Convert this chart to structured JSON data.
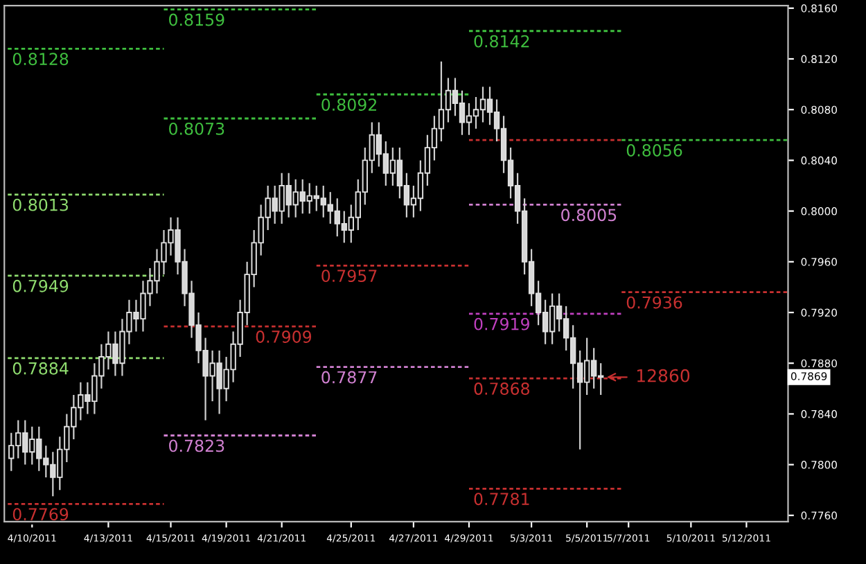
{
  "chart_data": {
    "type": "candlestick",
    "categories": [
      null,
      null,
      null,
      "4/10/2011",
      null,
      null,
      null,
      null,
      null,
      null,
      null,
      null,
      null,
      null,
      "4/13/2011",
      null,
      null,
      null,
      null,
      null,
      null,
      null,
      null,
      "4/15/2011",
      null,
      null,
      null,
      null,
      null,
      null,
      null,
      "4/19/2011",
      null,
      null,
      null,
      null,
      null,
      null,
      null,
      "4/21/2011",
      null,
      null,
      null,
      null,
      null,
      null,
      null,
      null,
      null,
      "4/25/2011",
      null,
      null,
      null,
      null,
      null,
      null,
      null,
      null,
      "4/27/2011",
      null,
      null,
      null,
      null,
      null,
      null,
      null,
      "4/29/2011",
      null,
      null,
      null,
      null,
      null,
      null,
      null,
      null,
      "5/3/2011",
      null,
      null,
      null,
      null,
      null,
      null,
      null,
      "5/5/2011",
      null,
      null,
      null,
      null,
      null,
      "5/7/2011",
      null,
      null,
      null,
      null,
      null,
      null,
      null,
      null,
      "5/10/2011",
      null,
      null,
      null,
      null,
      null,
      null,
      null,
      "5/12/2011",
      null,
      null,
      null,
      null,
      null
    ],
    "ohlc": [
      [
        0.7805,
        0.7825,
        0.7795,
        0.7815
      ],
      [
        0.7815,
        0.7835,
        0.7805,
        0.7825
      ],
      [
        0.7825,
        0.7835,
        0.78,
        0.781
      ],
      [
        0.781,
        0.783,
        0.78,
        0.782
      ],
      [
        0.782,
        0.783,
        0.7795,
        0.7805
      ],
      [
        0.7805,
        0.7815,
        0.779,
        0.78
      ],
      [
        0.78,
        0.781,
        0.7775,
        0.779
      ],
      [
        0.779,
        0.7822,
        0.778,
        0.7812
      ],
      [
        0.7812,
        0.784,
        0.7802,
        0.783
      ],
      [
        0.783,
        0.7855,
        0.782,
        0.7845
      ],
      [
        0.7845,
        0.7865,
        0.7835,
        0.7855
      ],
      [
        0.7855,
        0.7865,
        0.784,
        0.785
      ],
      [
        0.785,
        0.788,
        0.784,
        0.787
      ],
      [
        0.787,
        0.7895,
        0.786,
        0.7885
      ],
      [
        0.7885,
        0.7905,
        0.7875,
        0.7895
      ],
      [
        0.7895,
        0.7905,
        0.787,
        0.788
      ],
      [
        0.788,
        0.7915,
        0.787,
        0.7905
      ],
      [
        0.7905,
        0.793,
        0.7895,
        0.792
      ],
      [
        0.792,
        0.793,
        0.7905,
        0.7915
      ],
      [
        0.7915,
        0.7945,
        0.7905,
        0.7935
      ],
      [
        0.7935,
        0.7955,
        0.7925,
        0.7945
      ],
      [
        0.7945,
        0.797,
        0.7935,
        0.796
      ],
      [
        0.796,
        0.7985,
        0.795,
        0.7975
      ],
      [
        0.7975,
        0.7995,
        0.7965,
        0.7985
      ],
      [
        0.7985,
        0.7995,
        0.795,
        0.796
      ],
      [
        0.796,
        0.797,
        0.7925,
        0.7935
      ],
      [
        0.7935,
        0.7945,
        0.79,
        0.791
      ],
      [
        0.791,
        0.792,
        0.788,
        0.789
      ],
      [
        0.789,
        0.79,
        0.7835,
        0.787
      ],
      [
        0.787,
        0.789,
        0.785,
        0.788
      ],
      [
        0.788,
        0.789,
        0.784,
        0.786
      ],
      [
        0.786,
        0.7885,
        0.785,
        0.7875
      ],
      [
        0.7875,
        0.7905,
        0.7865,
        0.7895
      ],
      [
        0.7895,
        0.793,
        0.7885,
        0.792
      ],
      [
        0.792,
        0.796,
        0.791,
        0.795
      ],
      [
        0.795,
        0.7985,
        0.794,
        0.7975
      ],
      [
        0.7975,
        0.8005,
        0.7965,
        0.7995
      ],
      [
        0.7995,
        0.802,
        0.7985,
        0.801
      ],
      [
        0.801,
        0.802,
        0.799,
        0.8
      ],
      [
        0.8,
        0.803,
        0.799,
        0.802
      ],
      [
        0.802,
        0.803,
        0.7995,
        0.8005
      ],
      [
        0.8005,
        0.8025,
        0.7995,
        0.8015
      ],
      [
        0.8015,
        0.8025,
        0.7998,
        0.8008
      ],
      [
        0.8008,
        0.8022,
        0.7998,
        0.8012
      ],
      [
        0.8012,
        0.802,
        0.8,
        0.801
      ],
      [
        0.801,
        0.802,
        0.7995,
        0.8005
      ],
      [
        0.8005,
        0.8015,
        0.799,
        0.8
      ],
      [
        0.8,
        0.801,
        0.798,
        0.799
      ],
      [
        0.799,
        0.8,
        0.7975,
        0.7985
      ],
      [
        0.7985,
        0.8005,
        0.7975,
        0.7995
      ],
      [
        0.7995,
        0.8025,
        0.7985,
        0.8015
      ],
      [
        0.8015,
        0.805,
        0.8005,
        0.804
      ],
      [
        0.804,
        0.807,
        0.803,
        0.806
      ],
      [
        0.806,
        0.807,
        0.8035,
        0.8045
      ],
      [
        0.8045,
        0.8055,
        0.802,
        0.803
      ],
      [
        0.803,
        0.805,
        0.802,
        0.804
      ],
      [
        0.804,
        0.805,
        0.801,
        0.802
      ],
      [
        0.802,
        0.803,
        0.7995,
        0.8005
      ],
      [
        0.8005,
        0.802,
        0.7995,
        0.801
      ],
      [
        0.801,
        0.804,
        0.8,
        0.803
      ],
      [
        0.803,
        0.806,
        0.802,
        0.805
      ],
      [
        0.805,
        0.8075,
        0.804,
        0.8065
      ],
      [
        0.8065,
        0.8118,
        0.8055,
        0.808
      ],
      [
        0.808,
        0.8105,
        0.807,
        0.8095
      ],
      [
        0.8095,
        0.8105,
        0.8075,
        0.8085
      ],
      [
        0.8085,
        0.8095,
        0.806,
        0.807
      ],
      [
        0.807,
        0.8085,
        0.806,
        0.8075
      ],
      [
        0.8075,
        0.809,
        0.8065,
        0.808
      ],
      [
        0.808,
        0.8098,
        0.807,
        0.8088
      ],
      [
        0.8088,
        0.8098,
        0.8068,
        0.8078
      ],
      [
        0.8078,
        0.8088,
        0.8055,
        0.8065
      ],
      [
        0.8065,
        0.8075,
        0.803,
        0.804
      ],
      [
        0.804,
        0.805,
        0.801,
        0.802
      ],
      [
        0.802,
        0.803,
        0.799,
        0.8
      ],
      [
        0.8,
        0.801,
        0.795,
        0.796
      ],
      [
        0.796,
        0.797,
        0.7925,
        0.7935
      ],
      [
        0.7935,
        0.7945,
        0.791,
        0.792
      ],
      [
        0.792,
        0.793,
        0.7895,
        0.7905
      ],
      [
        0.7905,
        0.7935,
        0.7895,
        0.7925
      ],
      [
        0.7925,
        0.7935,
        0.7905,
        0.7915
      ],
      [
        0.7915,
        0.7925,
        0.789,
        0.79
      ],
      [
        0.79,
        0.791,
        0.786,
        0.788
      ],
      [
        0.788,
        0.789,
        0.7812,
        0.7865
      ],
      [
        0.7865,
        0.79,
        0.7855,
        0.7882
      ],
      [
        0.7882,
        0.7892,
        0.786,
        0.787
      ],
      [
        0.787,
        0.788,
        0.7855,
        0.7869
      ],
      null,
      null,
      null,
      null,
      null,
      null,
      null,
      null,
      null,
      null,
      null,
      null,
      null,
      null,
      null,
      null,
      null,
      null,
      null,
      null,
      null,
      null,
      null,
      null,
      null,
      null
    ],
    "ylim": [
      0.7755,
      0.8162
    ],
    "yticks": [
      {
        "value": 0.776,
        "label": "0.7760"
      },
      {
        "value": 0.78,
        "label": "0.7800"
      },
      {
        "value": 0.784,
        "label": "0.7840"
      },
      {
        "value": 0.788,
        "label": "0.7880"
      },
      {
        "value": 0.792,
        "label": "0.7920"
      },
      {
        "value": 0.796,
        "label": "0.7960"
      },
      {
        "value": 0.8,
        "label": "0.8000"
      },
      {
        "value": 0.804,
        "label": "0.8040"
      },
      {
        "value": 0.808,
        "label": "0.8080"
      },
      {
        "value": 0.812,
        "label": "0.8120"
      },
      {
        "value": 0.816,
        "label": "0.8160"
      }
    ],
    "ref_lines": [
      {
        "axis": "y",
        "value": 0.8128,
        "label": "0.8128",
        "color": "#3fbf3f",
        "line_style": "dotted"
      },
      {
        "axis": "y",
        "value": 0.8013,
        "label": "0.8013",
        "color": "#8fdc6f",
        "line_style": "dotted"
      },
      {
        "axis": "y",
        "value": 0.7949,
        "label": "0.7949",
        "color": "#8fdc6f",
        "line_style": "dotted"
      },
      {
        "axis": "y",
        "value": 0.7884,
        "label": "0.7884",
        "color": "#8fdc6f",
        "line_style": "dotted"
      },
      {
        "axis": "y",
        "value": 0.7769,
        "label": "0.7769",
        "color": "#c83030",
        "line_style": "dotted"
      },
      {
        "axis": "y",
        "value": 0.8159,
        "label": "0.8159",
        "color": "#3fbf3f",
        "line_style": "dotted"
      },
      {
        "axis": "y",
        "value": 0.8073,
        "label": "0.8073",
        "color": "#3fbf3f",
        "line_style": "dotted"
      },
      {
        "axis": "y",
        "value": 0.7909,
        "label": "0.7909",
        "color": "#c83030",
        "line_style": "dotted"
      },
      {
        "axis": "y",
        "value": 0.7823,
        "label": "0.7823",
        "color": "#d080d0",
        "line_style": "dotted"
      },
      {
        "axis": "y",
        "value": 0.8092,
        "label": "0.8092",
        "color": "#3fbf3f",
        "line_style": "dotted"
      },
      {
        "axis": "y",
        "value": 0.7957,
        "label": "0.7957",
        "color": "#c83030",
        "line_style": "dotted"
      },
      {
        "axis": "y",
        "value": 0.7877,
        "label": "0.7877",
        "color": "#d080d0",
        "line_style": "dotted"
      },
      {
        "axis": "y",
        "value": 0.8142,
        "label": "0.8142",
        "color": "#3fbf3f",
        "line_style": "dotted"
      },
      {
        "axis": "y",
        "value": 0.8056,
        "label": null,
        "color": "#c83030",
        "line_style": "dotted"
      },
      {
        "axis": "y",
        "value": 0.8005,
        "label": "0.8005",
        "color": "#d080d0",
        "line_style": "dotted"
      },
      {
        "axis": "y",
        "value": 0.7919,
        "label": "0.7919",
        "color": "#c040c0",
        "line_style": "dotted"
      },
      {
        "axis": "y",
        "value": 0.7868,
        "label": "0.7868",
        "color": "#c83030",
        "line_style": "dotted"
      },
      {
        "axis": "y",
        "value": 0.7781,
        "label": "0.7781",
        "color": "#c83030",
        "line_style": "dotted"
      },
      {
        "axis": "y",
        "value": 0.8056,
        "label": "0.8056",
        "color": "#3fbf3f",
        "line_style": "dotted"
      },
      {
        "axis": "y",
        "value": 0.7936,
        "label": "0.7936",
        "color": "#c83030",
        "line_style": "dotted"
      }
    ],
    "annotations": [
      "12860",
      {
        "text": "0.7869",
        "y": 0.7869
      }
    ],
    "grid": false
  }
}
